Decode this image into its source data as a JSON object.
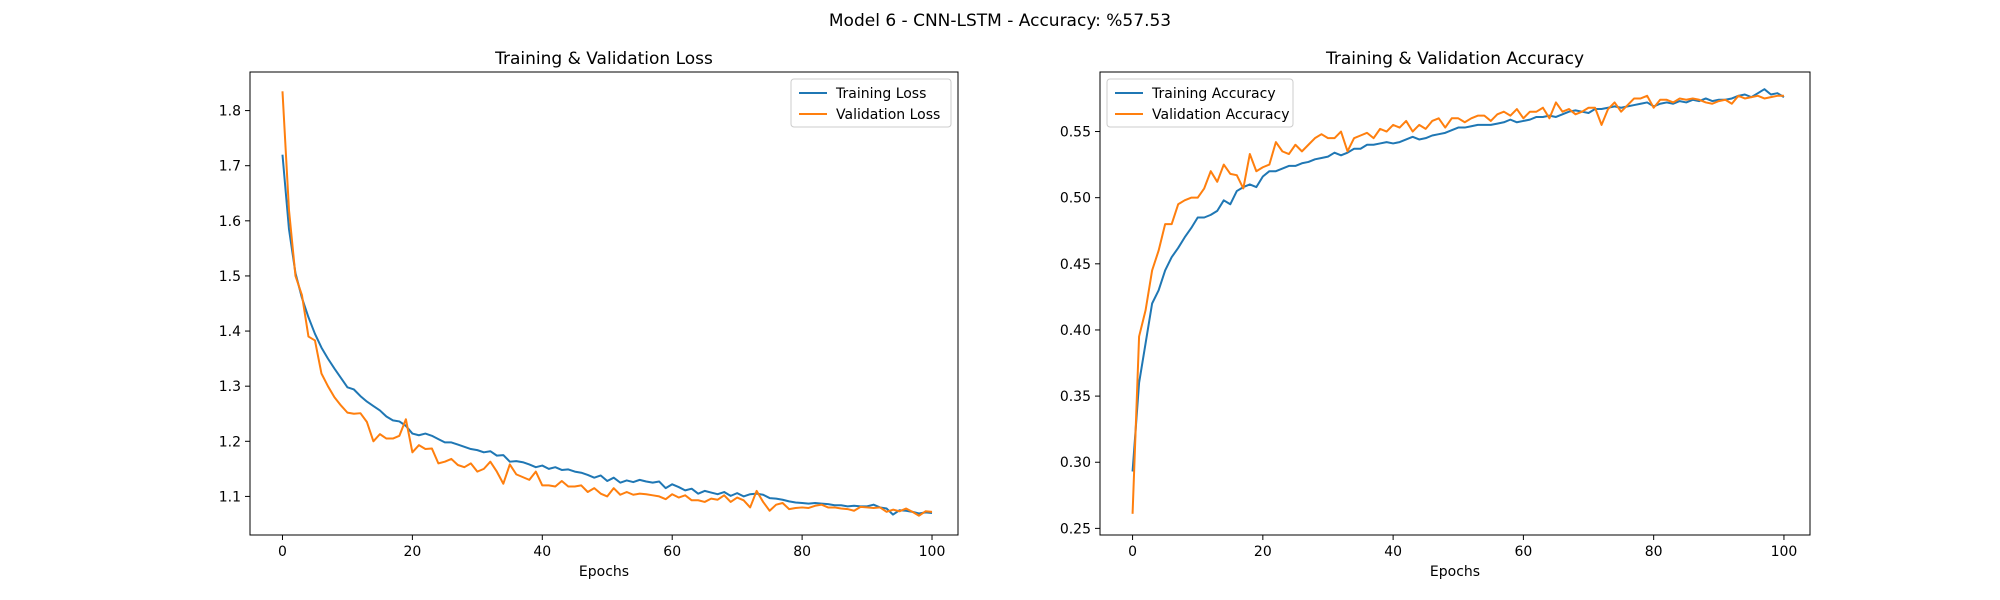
{
  "suptitle": "Model 6 - CNN-LSTM - Accuracy: %57.53",
  "colors": {
    "training": "#1f77b4",
    "validation": "#ff7f0e"
  },
  "chart_data": [
    {
      "type": "line",
      "title": "Training & Validation Loss",
      "xlabel": "Epochs",
      "ylabel": "",
      "xlim": [
        -5,
        104
      ],
      "ylim": [
        1.03,
        1.87
      ],
      "xticks": [
        0,
        20,
        40,
        60,
        80,
        100
      ],
      "yticks": [
        1.1,
        1.2,
        1.3,
        1.4,
        1.5,
        1.6,
        1.7,
        1.8
      ],
      "ytick_labels": [
        "1.1",
        "1.2",
        "1.3",
        "1.4",
        "1.5",
        "1.6",
        "1.7",
        "1.8"
      ],
      "legend_position": "top-right",
      "series": [
        {
          "name": "Training Loss",
          "color": "#1f77b4",
          "values": [
            1.72,
            1.585,
            1.505,
            1.46,
            1.425,
            1.395,
            1.37,
            1.35,
            1.332,
            1.315,
            1.298,
            1.294,
            1.282,
            1.272,
            1.264,
            1.256,
            1.245,
            1.238,
            1.236,
            1.228,
            1.214,
            1.211,
            1.214,
            1.21,
            1.204,
            1.198,
            1.198,
            1.194,
            1.19,
            1.186,
            1.184,
            1.18,
            1.182,
            1.174,
            1.175,
            1.163,
            1.164,
            1.162,
            1.158,
            1.153,
            1.156,
            1.15,
            1.153,
            1.148,
            1.149,
            1.145,
            1.143,
            1.139,
            1.134,
            1.138,
            1.128,
            1.134,
            1.125,
            1.129,
            1.126,
            1.13,
            1.127,
            1.125,
            1.127,
            1.115,
            1.122,
            1.117,
            1.111,
            1.114,
            1.105,
            1.11,
            1.107,
            1.104,
            1.108,
            1.101,
            1.106,
            1.1,
            1.104,
            1.105,
            1.103,
            1.097,
            1.096,
            1.094,
            1.091,
            1.089,
            1.088,
            1.087,
            1.088,
            1.087,
            1.086,
            1.084,
            1.084,
            1.082,
            1.083,
            1.082,
            1.082,
            1.085,
            1.08,
            1.078,
            1.067,
            1.075,
            1.074,
            1.072,
            1.069,
            1.071,
            1.07
          ]
        },
        {
          "name": "Validation Loss",
          "color": "#ff7f0e",
          "values": [
            1.835,
            1.62,
            1.5,
            1.465,
            1.39,
            1.383,
            1.323,
            1.3,
            1.28,
            1.265,
            1.252,
            1.25,
            1.251,
            1.235,
            1.2,
            1.213,
            1.205,
            1.205,
            1.21,
            1.24,
            1.18,
            1.193,
            1.186,
            1.187,
            1.16,
            1.163,
            1.168,
            1.157,
            1.153,
            1.16,
            1.145,
            1.15,
            1.163,
            1.145,
            1.123,
            1.158,
            1.14,
            1.135,
            1.13,
            1.145,
            1.12,
            1.12,
            1.118,
            1.128,
            1.118,
            1.118,
            1.12,
            1.108,
            1.115,
            1.105,
            1.1,
            1.115,
            1.103,
            1.108,
            1.103,
            1.105,
            1.104,
            1.102,
            1.1,
            1.095,
            1.104,
            1.098,
            1.102,
            1.093,
            1.093,
            1.09,
            1.096,
            1.094,
            1.102,
            1.09,
            1.098,
            1.093,
            1.08,
            1.11,
            1.09,
            1.074,
            1.085,
            1.088,
            1.077,
            1.079,
            1.08,
            1.079,
            1.083,
            1.085,
            1.08,
            1.08,
            1.078,
            1.077,
            1.074,
            1.081,
            1.08,
            1.079,
            1.08,
            1.072,
            1.076,
            1.073,
            1.078,
            1.072,
            1.065,
            1.073,
            1.072
          ]
        }
      ]
    },
    {
      "type": "line",
      "title": "Training & Validation Accuracy",
      "xlabel": "Epochs",
      "ylabel": "",
      "xlim": [
        -5,
        104
      ],
      "ylim": [
        0.245,
        0.595
      ],
      "xticks": [
        0,
        20,
        40,
        60,
        80,
        100
      ],
      "yticks": [
        0.25,
        0.3,
        0.35,
        0.4,
        0.45,
        0.5,
        0.55
      ],
      "ytick_labels": [
        "0.25",
        "0.30",
        "0.35",
        "0.40",
        "0.45",
        "0.50",
        "0.55"
      ],
      "legend_position": "top-left",
      "series": [
        {
          "name": "Training Accuracy",
          "color": "#1f77b4",
          "values": [
            0.293,
            0.36,
            0.39,
            0.42,
            0.43,
            0.445,
            0.455,
            0.462,
            0.47,
            0.477,
            0.485,
            0.485,
            0.487,
            0.49,
            0.498,
            0.495,
            0.505,
            0.508,
            0.51,
            0.508,
            0.516,
            0.52,
            0.52,
            0.522,
            0.524,
            0.524,
            0.526,
            0.527,
            0.529,
            0.53,
            0.531,
            0.534,
            0.532,
            0.534,
            0.537,
            0.537,
            0.54,
            0.54,
            0.541,
            0.542,
            0.541,
            0.542,
            0.544,
            0.546,
            0.544,
            0.545,
            0.547,
            0.548,
            0.549,
            0.551,
            0.553,
            0.553,
            0.554,
            0.555,
            0.555,
            0.555,
            0.556,
            0.557,
            0.559,
            0.557,
            0.558,
            0.559,
            0.561,
            0.561,
            0.562,
            0.561,
            0.563,
            0.565,
            0.566,
            0.565,
            0.564,
            0.567,
            0.567,
            0.568,
            0.569,
            0.568,
            0.569,
            0.57,
            0.571,
            0.572,
            0.569,
            0.571,
            0.572,
            0.571,
            0.573,
            0.572,
            0.574,
            0.573,
            0.575,
            0.573,
            0.574,
            0.574,
            0.575,
            0.577,
            0.578,
            0.576,
            0.579,
            0.582,
            0.578,
            0.579,
            0.576
          ]
        },
        {
          "name": "Validation Accuracy",
          "color": "#ff7f0e",
          "values": [
            0.261,
            0.395,
            0.415,
            0.445,
            0.46,
            0.48,
            0.48,
            0.495,
            0.498,
            0.5,
            0.5,
            0.507,
            0.52,
            0.512,
            0.525,
            0.518,
            0.517,
            0.507,
            0.533,
            0.52,
            0.523,
            0.525,
            0.542,
            0.535,
            0.533,
            0.54,
            0.535,
            0.54,
            0.545,
            0.548,
            0.545,
            0.545,
            0.55,
            0.535,
            0.545,
            0.547,
            0.549,
            0.545,
            0.552,
            0.55,
            0.555,
            0.553,
            0.558,
            0.55,
            0.555,
            0.552,
            0.558,
            0.56,
            0.553,
            0.56,
            0.56,
            0.557,
            0.56,
            0.562,
            0.562,
            0.558,
            0.563,
            0.565,
            0.562,
            0.567,
            0.56,
            0.565,
            0.565,
            0.568,
            0.56,
            0.572,
            0.565,
            0.567,
            0.563,
            0.565,
            0.568,
            0.568,
            0.555,
            0.567,
            0.572,
            0.565,
            0.57,
            0.575,
            0.575,
            0.577,
            0.568,
            0.574,
            0.574,
            0.572,
            0.575,
            0.574,
            0.575,
            0.574,
            0.572,
            0.571,
            0.573,
            0.574,
            0.571,
            0.577,
            0.575,
            0.576,
            0.577,
            0.575,
            0.576,
            0.577,
            0.577
          ]
        }
      ]
    }
  ]
}
